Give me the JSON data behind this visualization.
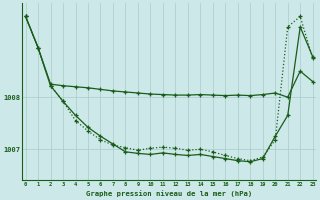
{
  "title": "Graphe pression niveau de la mer (hPa)",
  "bg_color": "#cce8e8",
  "grid_color": "#aacccc",
  "line_color": "#1a5c1a",
  "ylim": [
    1006.4,
    1009.8
  ],
  "xlim": [
    -0.3,
    23.3
  ],
  "yticks": [
    1007,
    1008
  ],
  "xticks": [
    0,
    1,
    2,
    3,
    4,
    5,
    6,
    7,
    8,
    9,
    10,
    11,
    12,
    13,
    14,
    15,
    16,
    17,
    18,
    19,
    20,
    21,
    22,
    23
  ],
  "s1": [
    1009.55,
    1008.95,
    1008.25,
    1008.22,
    1008.2,
    1008.18,
    1008.15,
    1008.12,
    1008.1,
    1008.08,
    1008.06,
    1008.05,
    1008.04,
    1008.04,
    1008.05,
    1008.04,
    1008.03,
    1008.04,
    1008.03,
    1008.05,
    1008.08,
    1008.0,
    1008.5,
    1008.3
  ],
  "s2": [
    1009.55,
    1008.95,
    1008.22,
    1007.92,
    1007.65,
    1007.42,
    1007.25,
    1007.1,
    1006.95,
    1006.92,
    1006.9,
    1006.93,
    1006.9,
    1006.88,
    1006.9,
    1006.86,
    1006.82,
    1006.78,
    1006.76,
    1006.82,
    1007.25,
    1007.65,
    1009.35,
    1008.78
  ],
  "s3": [
    1009.55,
    1008.95,
    1008.22,
    1007.92,
    1007.55,
    1007.35,
    1007.18,
    1007.08,
    1007.03,
    1006.98,
    1007.02,
    1007.04,
    1007.02,
    1006.98,
    1007.0,
    1006.95,
    1006.88,
    1006.82,
    1006.78,
    1006.85,
    1007.18,
    1009.35,
    1009.55,
    1008.75
  ],
  "s4_dotted": [
    1009.55,
    1008.75,
    1008.15,
    1007.88,
    1007.62,
    1007.45,
    1007.3,
    1007.15,
    1007.05,
    1007.0,
    1007.02,
    1007.05,
    1007.02,
    1007.0,
    1007.02,
    1006.97,
    1006.92,
    1006.88,
    1006.85,
    1006.9,
    1007.2,
    1007.58,
    1009.35,
    1008.75
  ]
}
